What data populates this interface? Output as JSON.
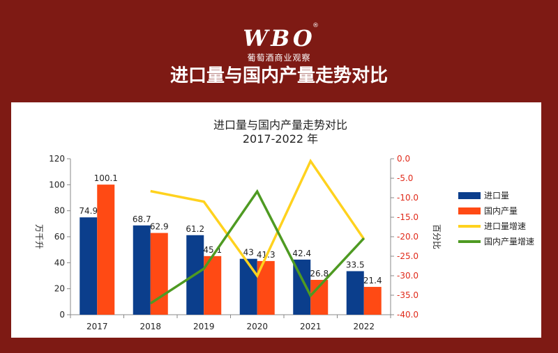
{
  "header": {
    "logo_text": "WBO",
    "logo_subtitle": "葡萄酒商业观察",
    "title": "进口量与国内产量走势对比"
  },
  "chart_data": {
    "type": "bar",
    "title": "进口量与国内产量走势对比",
    "subtitle": "2017-2022 年",
    "categories": [
      "2017",
      "2018",
      "2019",
      "2020",
      "2021",
      "2022"
    ],
    "ylabel": "万千升",
    "ylim": [
      0,
      120
    ],
    "yticks": [
      0,
      20,
      40,
      60,
      80,
      100,
      120
    ],
    "y2label": "百分比",
    "y2lim": [
      -40,
      0
    ],
    "y2ticks": [
      "0.0",
      "-5.0",
      "-10.0",
      "-15.0",
      "-20.0",
      "-25.0",
      "-30.0",
      "-35.0",
      "-40.0"
    ],
    "legend_position": "right",
    "grid": false,
    "series": [
      {
        "name": "进口量",
        "type": "bar",
        "axis": "left",
        "color": "#0b3e8c",
        "values": [
          74.9,
          68.7,
          61.2,
          43,
          42.4,
          33.5
        ],
        "labels": [
          "74.9",
          "68.7",
          "61.2",
          "43",
          "42.4",
          "33.5"
        ]
      },
      {
        "name": "国内产量",
        "type": "bar",
        "axis": "left",
        "color": "#ff4a14",
        "values": [
          100.1,
          62.9,
          45.1,
          41.3,
          26.8,
          21.4
        ],
        "labels": [
          "100.1",
          "62.9",
          "45.1",
          "41.3",
          "26.8",
          "21.4"
        ]
      },
      {
        "name": "进口量增速",
        "type": "line",
        "axis": "right",
        "color": "#ffd21e",
        "values": [
          null,
          -8.3,
          -11.0,
          -30.0,
          -0.6,
          -20.6
        ]
      },
      {
        "name": "国内产量增速",
        "type": "line",
        "axis": "right",
        "color": "#4e9a22",
        "values": [
          null,
          -37.1,
          -28.2,
          -8.4,
          -35.1,
          -20.4
        ]
      }
    ]
  }
}
